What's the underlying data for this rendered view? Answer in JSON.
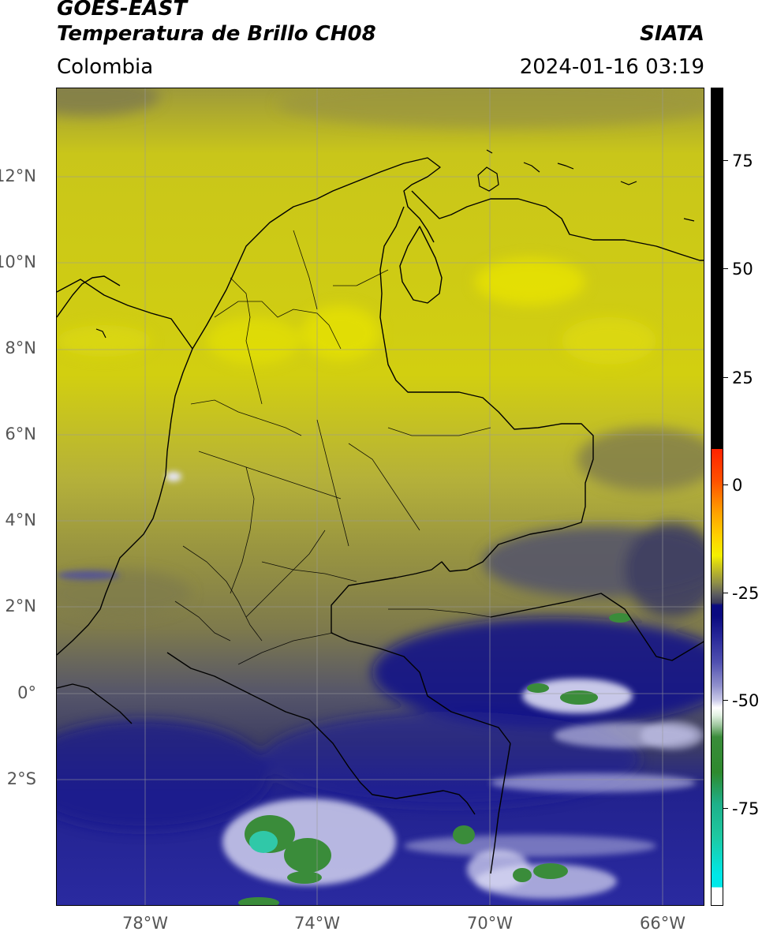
{
  "header": {
    "satellite": "GOES-EAST",
    "product": "Temperatura de Brillo CH08",
    "brand": "SIATA",
    "region": "Colombia",
    "timestamp": "2024-01-16 03:19"
  },
  "axes": {
    "lat_labels": [
      "12°N",
      "10°N",
      "8°N",
      "6°N",
      "4°N",
      "2°N",
      "0°",
      "2°S"
    ],
    "lon_labels": [
      "78°W",
      "74°W",
      "70°W",
      "66°W"
    ]
  },
  "colorbar": {
    "labels": [
      "75",
      "50",
      "25",
      "0",
      "-25",
      "-50",
      "-75"
    ],
    "colors": {
      "black_high": "#000000",
      "warm_red": "#ff2200",
      "warm_orange": "#ffa000",
      "yellow": "#f4f000",
      "olive": "#8e8e48",
      "slate": "#3a3a5a",
      "navy": "#0a0a80",
      "blue": "#3a3aa8",
      "lavender": "#c8c8e8",
      "white": "#ffffff",
      "green": "#2e8a2e",
      "teal": "#1ec8a0",
      "cyan": "#00e8e8"
    }
  },
  "map_colors": {
    "yellow_bright": "#e8e400",
    "yellow": "#c9c61a",
    "olive_light": "#b4b03a",
    "olive": "#9a9640",
    "olive_dark": "#7e7a4c",
    "slate": "#55556a",
    "slate_dark": "#3e3e62",
    "navy": "#12128a",
    "blue": "#2c2ca0",
    "blue_light": "#5a5ab8",
    "white": "#f2f2ff",
    "green": "#3a8c3a",
    "teal": "#30c8a8"
  }
}
